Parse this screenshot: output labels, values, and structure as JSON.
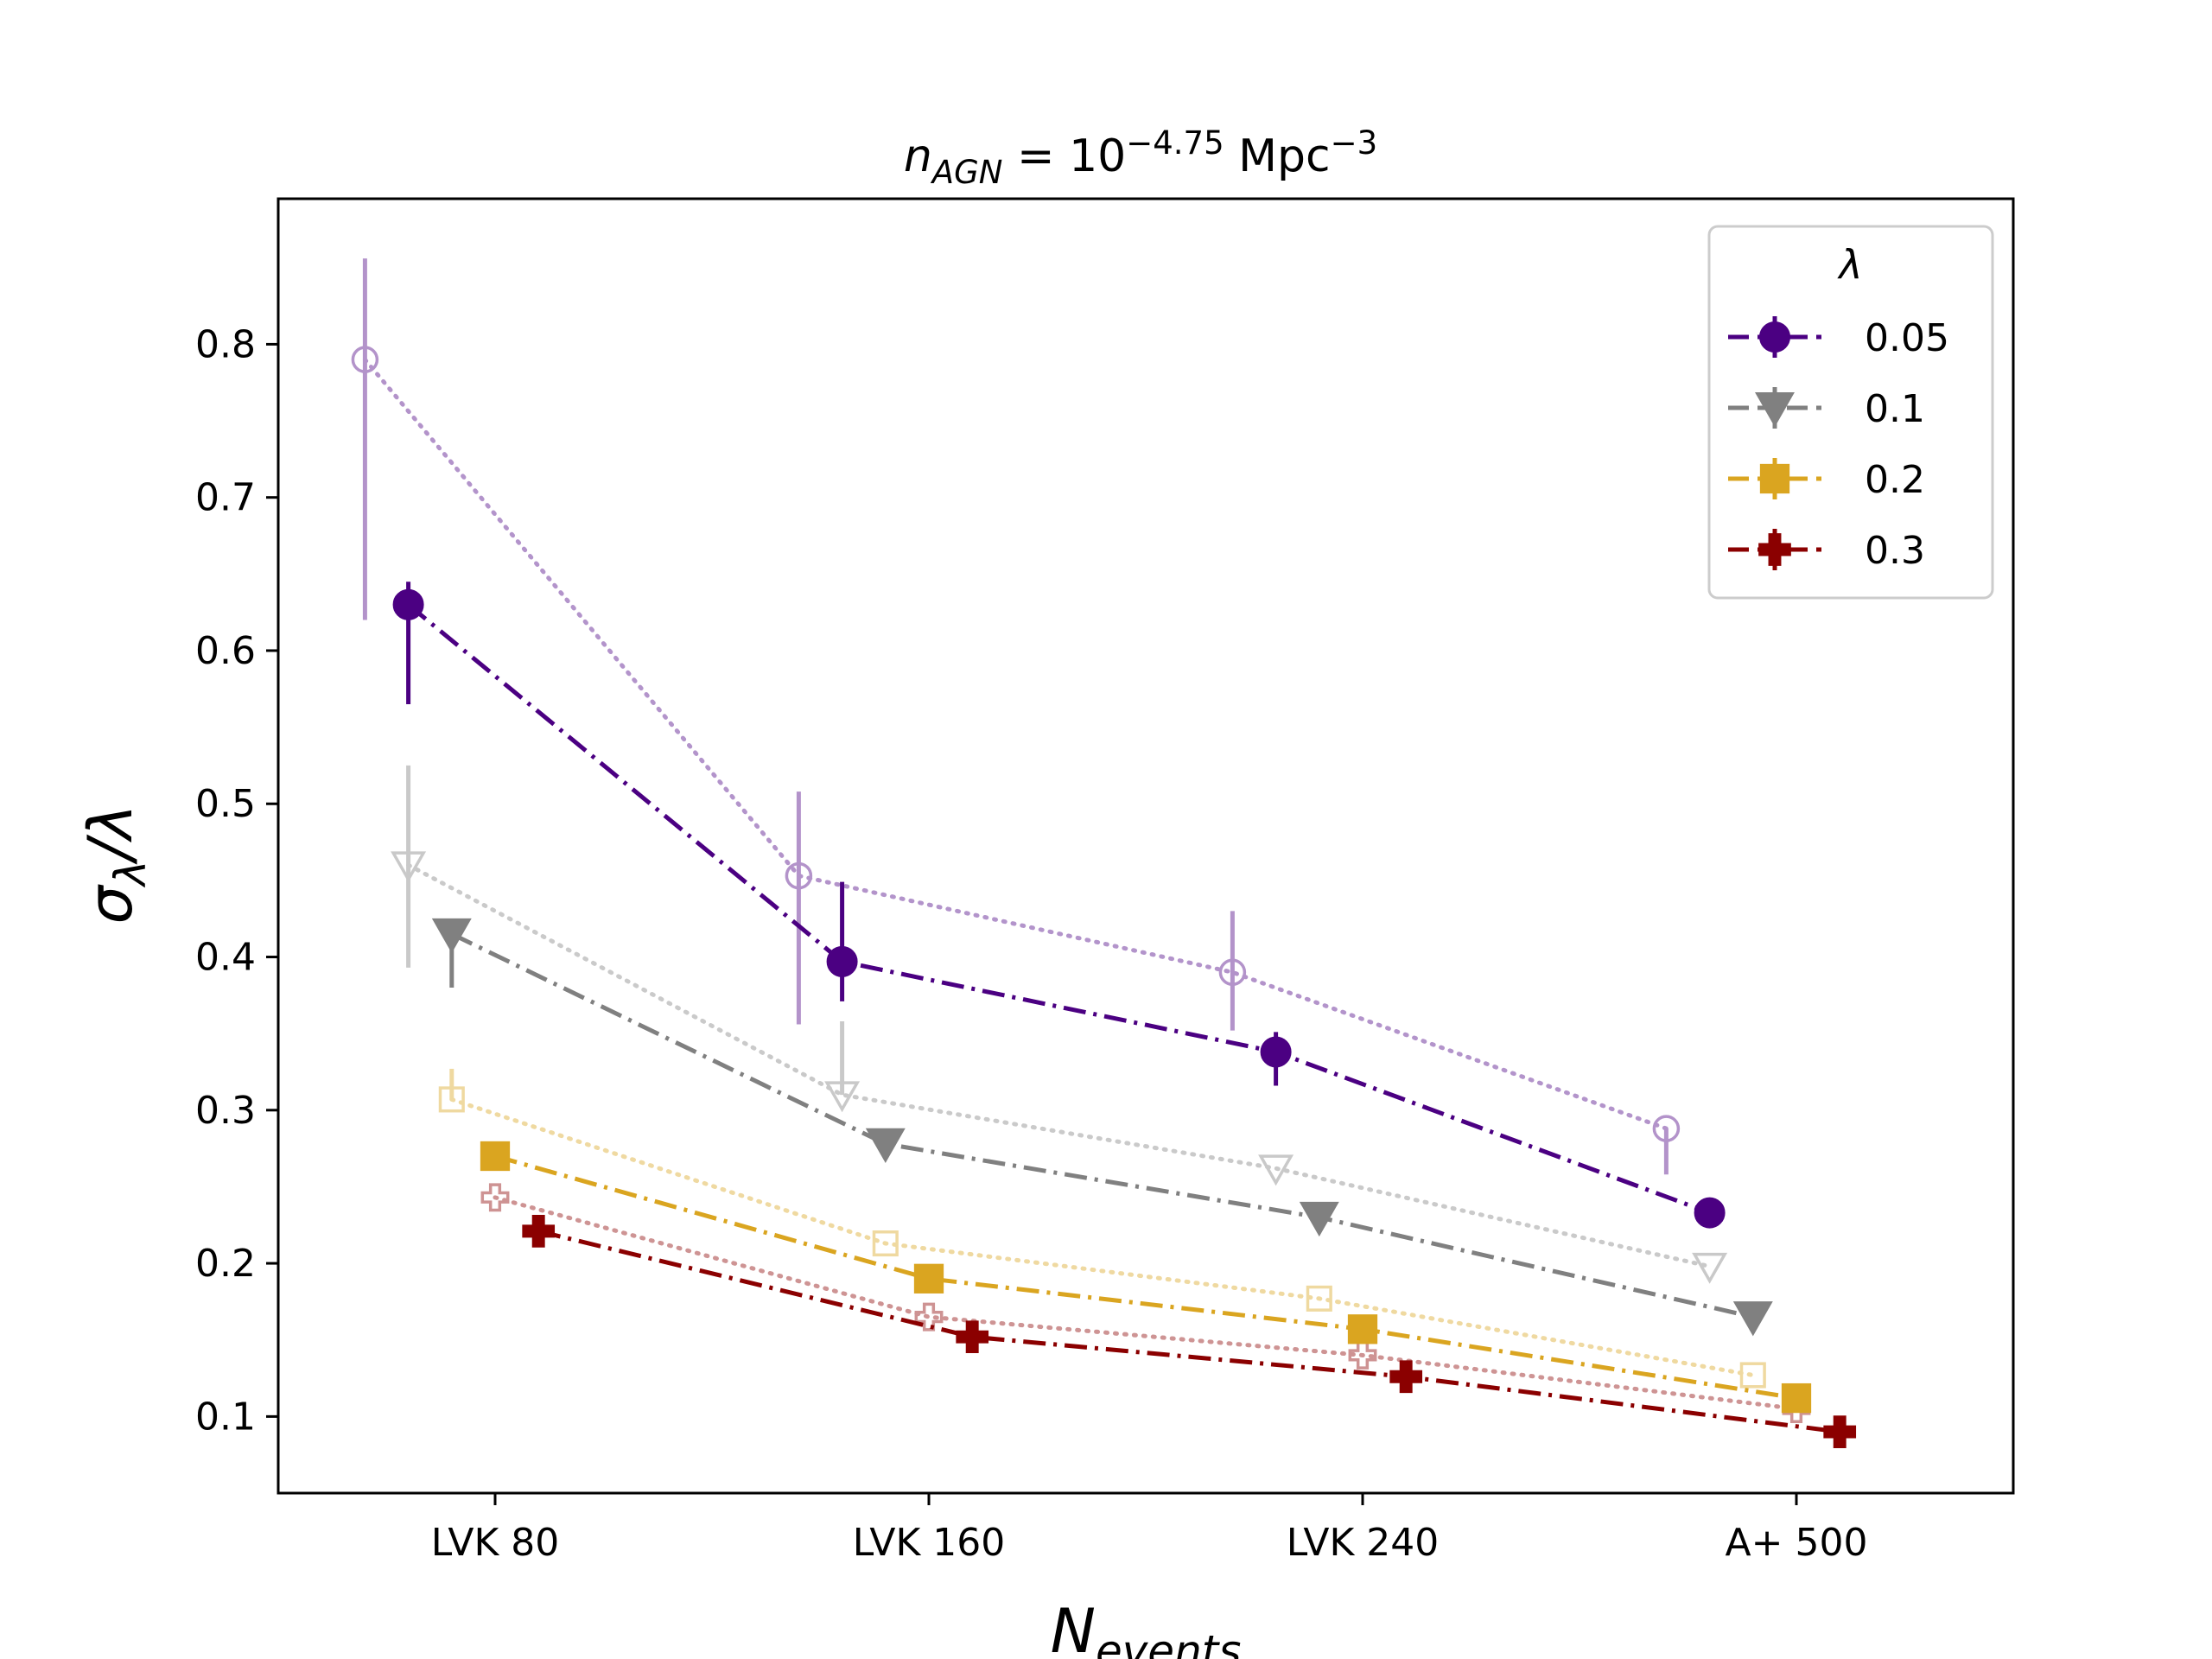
{
  "chart_data": {
    "type": "line",
    "title": {
      "base": "n",
      "sub": "AGN",
      "mid": " = 10",
      "sup": "−4.75",
      "unit": " Mpc",
      "unit_sup": "−3"
    },
    "title_text": "n_AGN = 10^-4.75 Mpc^-3",
    "xlabel": {
      "base": "N",
      "sub": "events"
    },
    "xlabel_text": "N_events",
    "ylabel": {
      "base": "σ",
      "sub": "λ",
      "rest": "/λ"
    },
    "ylabel_text": "σ_λ/λ",
    "categories": [
      "LVK 80",
      "LVK 160",
      "LVK 240",
      "A+ 500"
    ],
    "ylim": [
      0.05,
      0.895
    ],
    "yticks": [
      0.1,
      0.2,
      0.3,
      0.4,
      0.5,
      0.6,
      0.7,
      0.8
    ],
    "ytick_labels": [
      "0.1",
      "0.2",
      "0.3",
      "0.4",
      "0.5",
      "0.6",
      "0.7",
      "0.8"
    ],
    "xlim": [
      -0.5,
      3.5
    ],
    "legend": {
      "title": "λ",
      "position": "top-right"
    },
    "series": [
      {
        "name": "0.05",
        "color": "#4b0082",
        "marker": "circle",
        "offset": -0.2,
        "values": [
          0.63,
          0.397,
          0.338,
          0.233
        ],
        "err_low": [
          0.065,
          0.026,
          0.022,
          0.0
        ],
        "err_high": [
          0.015,
          0.052,
          0.013,
          0.0
        ],
        "faded_values": [
          0.79,
          0.453,
          0.39,
          0.288
        ],
        "faded_err_low": [
          0.17,
          0.097,
          0.038,
          0.03
        ],
        "faded_err_high": [
          0.066,
          0.055,
          0.04,
          0.0
        ]
      },
      {
        "name": "0.1",
        "color": "#808080",
        "marker": "triangle-down",
        "offset": -0.1,
        "values": [
          0.415,
          0.278,
          0.23,
          0.165
        ],
        "err_low": [
          0.035,
          0.01,
          0.0,
          0.0
        ],
        "err_high": [
          0.0,
          0.0,
          0.0,
          0.0
        ],
        "faded_values": [
          0.46,
          0.31,
          0.262,
          0.198
        ],
        "faded_err_low": [
          0.067,
          0.0,
          0.0,
          0.0
        ],
        "faded_err_high": [
          0.065,
          0.048,
          0.0,
          0.0
        ]
      },
      {
        "name": "0.2",
        "color": "#daa520",
        "marker": "square",
        "offset": 0.0,
        "values": [
          0.27,
          0.19,
          0.157,
          0.112
        ],
        "err_low": [
          0.0,
          0.0,
          0.0,
          0.0
        ],
        "err_high": [
          0.0,
          0.0,
          0.0,
          0.0
        ],
        "faded_values": [
          0.307,
          0.213,
          0.177,
          0.127
        ],
        "faded_err_low": [
          0.0,
          0.0,
          0.0,
          0.0
        ],
        "faded_err_high": [
          0.02,
          0.0,
          0.0,
          0.0
        ]
      },
      {
        "name": "0.3",
        "color": "#8b0000",
        "marker": "plus",
        "offset": 0.1,
        "values": [
          0.221,
          0.152,
          0.126,
          0.09
        ],
        "err_low": [
          0.0,
          0.0,
          0.0,
          0.0
        ],
        "err_high": [
          0.0,
          0.0,
          0.0,
          0.0
        ],
        "faded_values": [
          0.243,
          0.165,
          0.14,
          0.105
        ],
        "faded_err_low": [
          0.0,
          0.0,
          0.0,
          0.0
        ],
        "faded_err_high": [
          0.0,
          0.0,
          0.0,
          0.0
        ]
      }
    ]
  }
}
